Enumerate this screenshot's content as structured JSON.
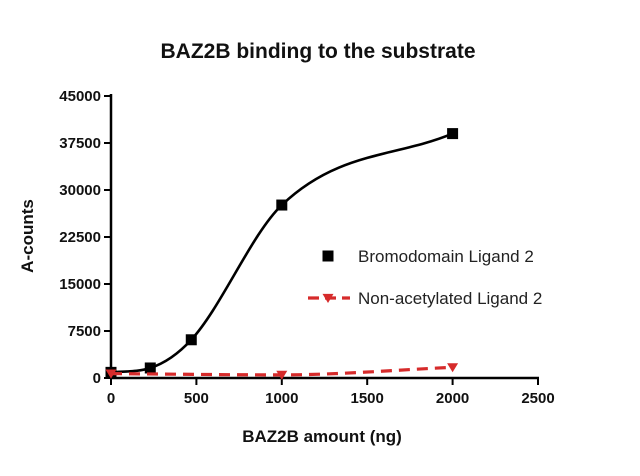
{
  "chart_data": {
    "type": "line",
    "title": "BAZ2B binding to the substrate",
    "xlabel": "BAZ2B amount (ng)",
    "ylabel": "A-counts",
    "xlim": [
      0,
      2500
    ],
    "ylim": [
      0,
      45000
    ],
    "x_ticks": [
      "0",
      "500",
      "1000",
      "1500",
      "2000",
      "2500"
    ],
    "y_ticks": [
      "0",
      "7500",
      "15000",
      "22500",
      "30000",
      "37500",
      "45000"
    ],
    "grid": false,
    "legend_position": "center-right",
    "series": [
      {
        "name": "Bromodomain Ligand 2",
        "color": "#000000",
        "marker": "square",
        "line_style": "solid",
        "x": [
          0,
          230,
          470,
          1000,
          2000
        ],
        "y": [
          900,
          1600,
          6100,
          27600,
          39000
        ]
      },
      {
        "name": "Non-acetylated Ligand 2",
        "color": "#d62b2b",
        "marker": "triangle-down",
        "line_style": "dashed",
        "x": [
          0,
          1000,
          2000
        ],
        "y": [
          700,
          500,
          1700
        ]
      }
    ]
  }
}
